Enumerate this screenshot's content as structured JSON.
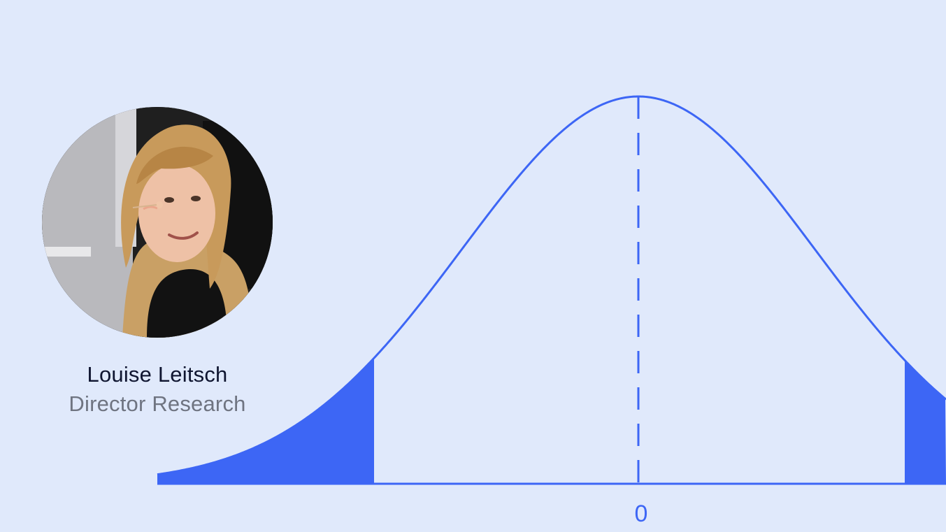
{
  "person": {
    "name": "Louise Leitsch",
    "title": "Director Research"
  },
  "chart_data": {
    "type": "area",
    "distribution": "normal",
    "center_label": "0",
    "x_ticks": [
      0
    ],
    "mean": 0,
    "shaded_regions": [
      "left-tail",
      "right-tail"
    ],
    "mean_line": "dashed",
    "colors": {
      "curve": "#3d66f5",
      "fill": "#3d66f5",
      "background": "#e0e9fb"
    }
  }
}
